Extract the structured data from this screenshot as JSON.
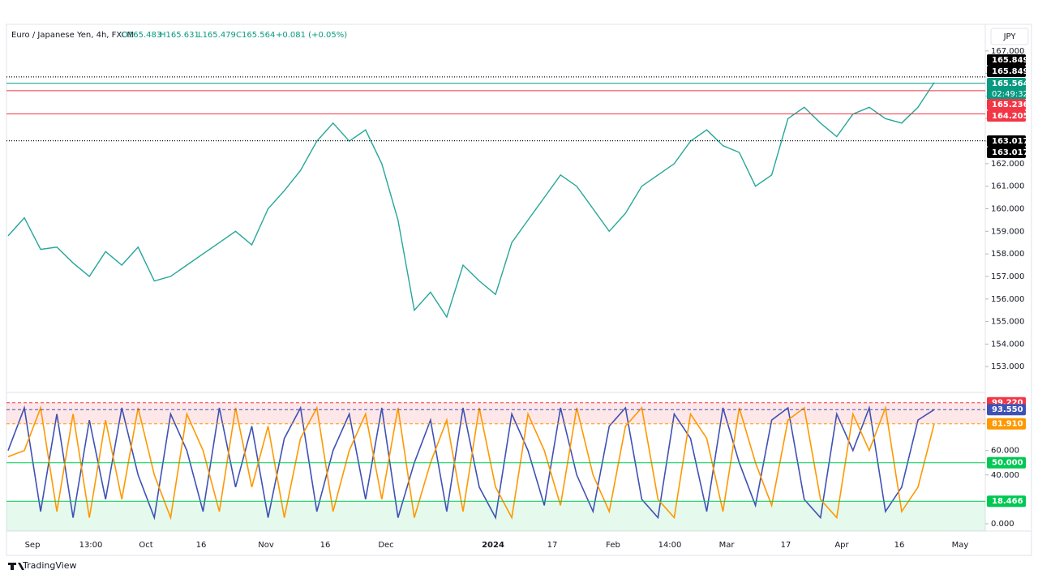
{
  "chart_data": [
    {
      "type": "line",
      "title": "Euro / Japanese Yen, 4h, FXCM",
      "ohlc": [
        "O165.483",
        "H165.631",
        "L165.479",
        "C165.564"
      ],
      "change": "+0.081 (+0.05%)",
      "currency": "JPY",
      "brand": "TradingView",
      "x_labels": [
        "Sep",
        "13:00",
        "Oct",
        "16",
        "Nov",
        "16",
        "Dec",
        "2024",
        "17",
        "Feb",
        "14:00",
        "Mar",
        "17",
        "Apr",
        "16",
        "May"
      ],
      "series": [
        {
          "color": "#26a69a",
          "values": [
            158.8,
            159.6,
            158.2,
            158.3,
            157.6,
            157.0,
            158.1,
            157.5,
            158.3,
            156.8,
            157.0,
            157.5,
            158.0,
            158.5,
            159.0,
            158.4,
            160.0,
            160.8,
            161.7,
            163.0,
            163.8,
            163.0,
            163.5,
            162.0,
            159.5,
            155.5,
            156.3,
            155.2,
            157.5,
            156.8,
            156.2,
            158.5,
            159.5,
            160.5,
            161.5,
            161.0,
            160.0,
            159.0,
            159.8,
            161.0,
            161.5,
            162.0,
            163.0,
            163.5,
            162.8,
            162.5,
            161.0,
            161.5,
            164.0,
            164.5,
            163.8,
            163.2,
            164.2,
            164.5,
            164.0,
            163.8,
            164.5,
            165.6
          ]
        }
      ],
      "ylim": [
        152.0,
        168.0
      ],
      "yticks": [
        {
          "value": 153,
          "label": "153.000"
        },
        {
          "value": 154,
          "label": "154.000"
        },
        {
          "value": 155,
          "label": "155.000"
        },
        {
          "value": 156,
          "label": "156.000"
        },
        {
          "value": 157,
          "label": "157.000"
        },
        {
          "value": 158,
          "label": "158.000"
        },
        {
          "value": 159,
          "label": "159.000"
        },
        {
          "value": 160,
          "label": "160.000"
        },
        {
          "value": 161,
          "label": "161.000"
        },
        {
          "value": 162,
          "label": "162.000"
        },
        {
          "value": 163,
          "label": "163.000"
        },
        {
          "value": 164,
          "label": "164.000"
        },
        {
          "value": 165,
          "label": "165.000"
        },
        {
          "value": 166,
          "label": "166.000"
        },
        {
          "value": 167,
          "label": "167.000"
        }
      ],
      "markers": [
        {
          "value": 165.849,
          "color": "#000000"
        },
        {
          "value": 165.849,
          "color": "#000000"
        },
        {
          "value": 165.564,
          "color": "#089981"
        },
        {
          "value": 165.236,
          "color": "#f23645"
        },
        {
          "value": 164.205,
          "color": "#f23645"
        },
        {
          "value": 163.017,
          "color": "#000000"
        },
        {
          "value": 163.017,
          "color": "#000000"
        }
      ],
      "countdown": "02:49:32"
    },
    {
      "type": "line",
      "series": [
        {
          "color": "#3f51b5",
          "values": [
            60,
            95,
            10,
            90,
            5,
            85,
            20,
            95,
            40,
            5,
            90,
            60,
            10,
            95,
            30,
            80,
            5,
            70,
            95,
            10,
            60,
            90,
            20,
            95,
            5,
            50,
            85,
            10,
            95,
            30,
            5,
            90,
            60,
            15,
            95,
            40,
            10,
            80,
            95,
            20,
            5,
            90,
            70,
            10,
            95,
            50,
            15,
            85,
            95,
            20,
            5,
            90,
            60,
            95,
            10,
            30,
            85,
            93.55
          ]
        },
        {
          "color": "#ff9800",
          "values": [
            55,
            60,
            95,
            10,
            90,
            5,
            85,
            20,
            95,
            40,
            5,
            90,
            60,
            10,
            95,
            30,
            80,
            5,
            70,
            95,
            10,
            60,
            90,
            20,
            95,
            5,
            50,
            85,
            10,
            95,
            30,
            5,
            90,
            60,
            15,
            95,
            40,
            10,
            80,
            95,
            20,
            5,
            90,
            70,
            10,
            95,
            50,
            15,
            85,
            95,
            20,
            5,
            90,
            60,
            95,
            10,
            30,
            81.91
          ]
        }
      ],
      "ylim": [
        -6,
        105
      ],
      "yticks": [
        {
          "value": 0,
          "label": "0.000"
        },
        {
          "value": 40,
          "label": "40.000"
        },
        {
          "value": 60,
          "label": "60.000"
        }
      ],
      "markers": [
        {
          "value": 99.22,
          "label": "99.220",
          "color": "#f23645"
        },
        {
          "value": 93.55,
          "label": "93.550",
          "color": "#3f51b5"
        },
        {
          "value": 81.91,
          "label": "81.910",
          "color": "#ff9800"
        },
        {
          "value": 50,
          "label": "50.000",
          "color": "#00c853"
        },
        {
          "value": 18.466,
          "label": "18.466",
          "color": "#00c853"
        }
      ]
    }
  ]
}
